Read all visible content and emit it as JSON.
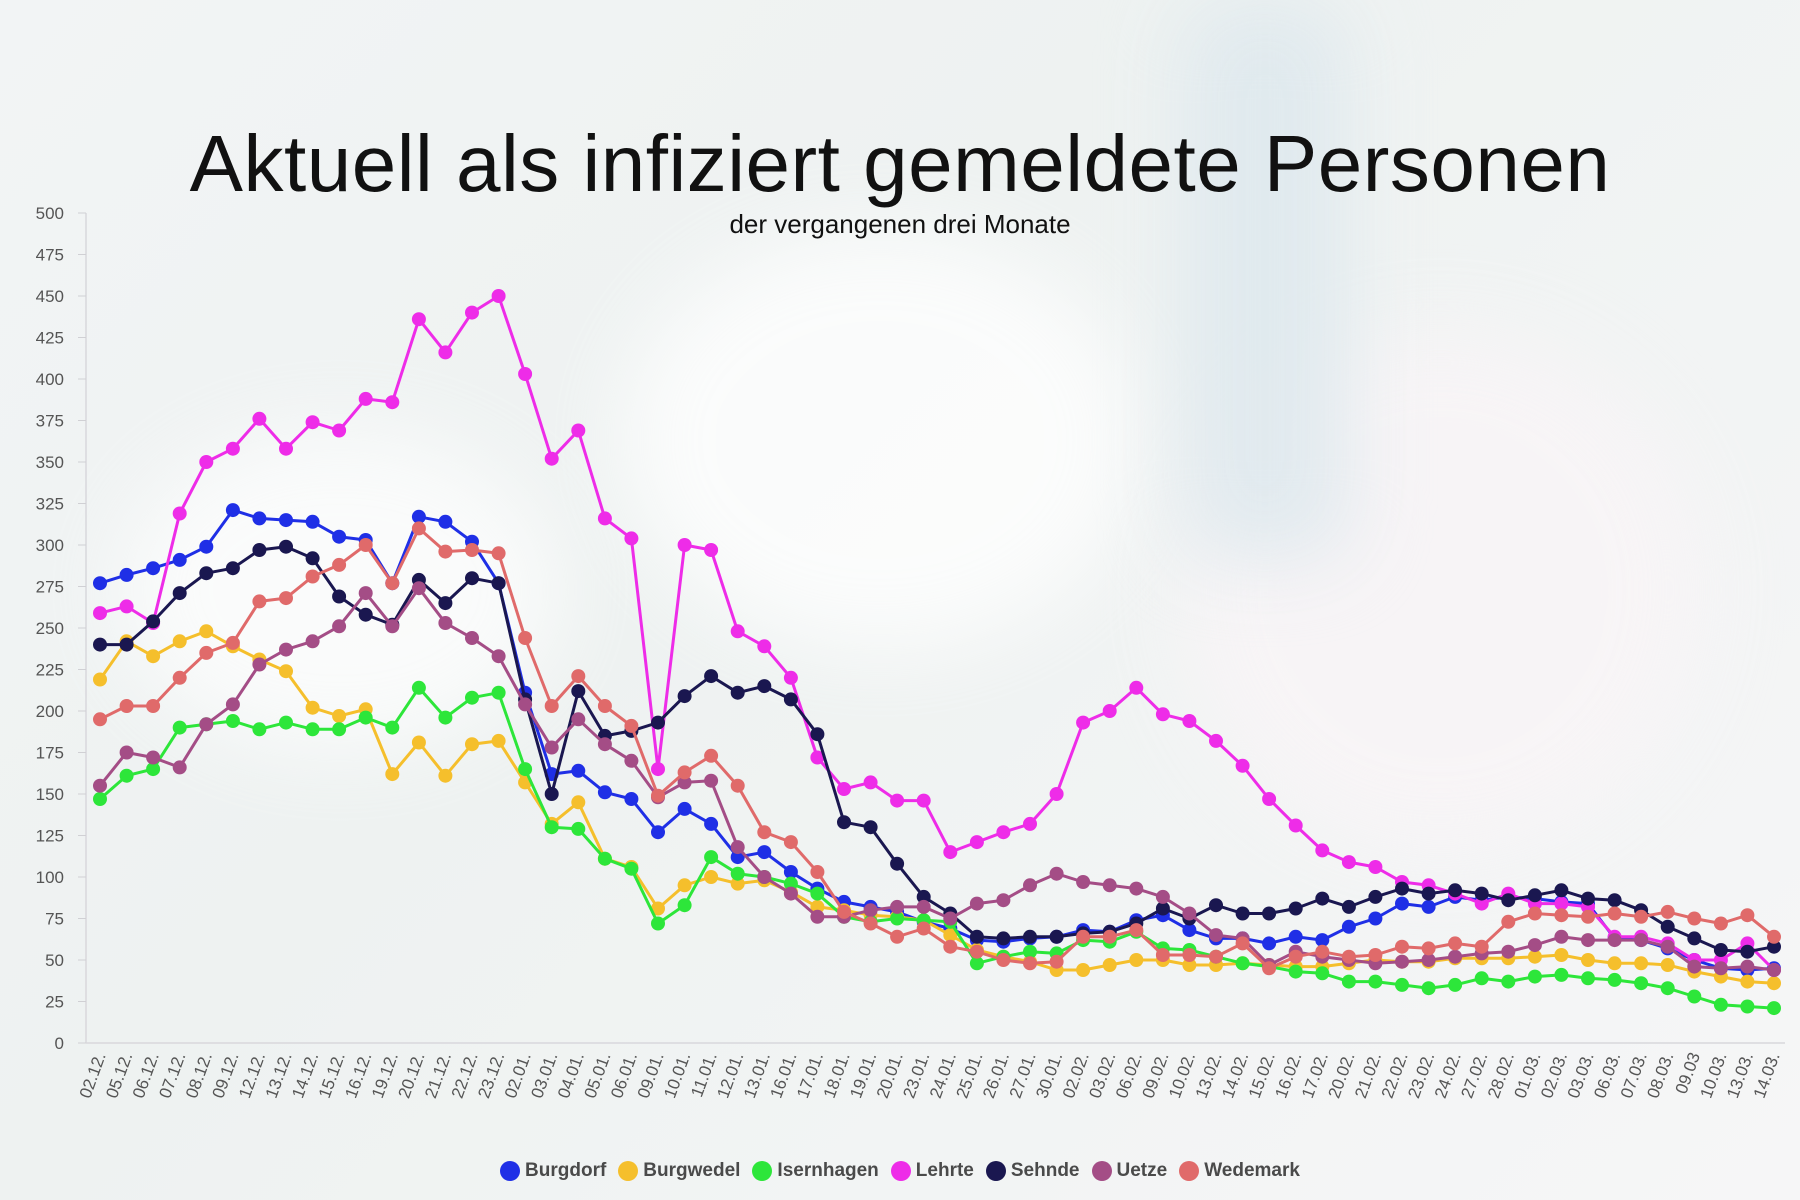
{
  "chart_data": {
    "type": "line",
    "title": "Aktuell als infiziert gemeldete Personen",
    "subtitle": "der vergangenen drei Monate",
    "xlabel": "",
    "ylabel": "",
    "ylim": [
      0,
      500
    ],
    "yticks": [
      "500",
      "475",
      "450",
      "425",
      "400",
      "375",
      "350",
      "325",
      "300",
      "275",
      "250",
      "225",
      "200",
      "175",
      "150",
      "125",
      "100",
      "75",
      "50",
      "25",
      "0"
    ],
    "categories": [
      "02.12.",
      "05.12.",
      "06.12.",
      "07.12.",
      "08.12.",
      "09.12.",
      "12.12.",
      "13.12.",
      "14.12.",
      "15.12.",
      "16.12.",
      "19.12.",
      "20.12.",
      "21.12.",
      "22.12.",
      "23.12.",
      "02.01.",
      "03.01.",
      "04.01.",
      "05.01.",
      "06.01.",
      "09.01.",
      "10.01.",
      "11.01.",
      "12.01.",
      "13.01.",
      "16.01.",
      "17.01.",
      "18.01.",
      "19.01.",
      "20.01.",
      "23.01.",
      "24.01.",
      "25.01.",
      "26.01.",
      "27.01.",
      "30.01.",
      "02.02.",
      "03.02.",
      "06.02.",
      "09.02.",
      "10.02.",
      "13.02.",
      "14.02.",
      "15.02.",
      "16.02.",
      "17.02.",
      "20.02.",
      "21.02.",
      "22.02.",
      "23.02.",
      "24.02.",
      "27.02.",
      "28.02.",
      "01.03.",
      "02.03.",
      "03.03.",
      "06.03.",
      "07.03.",
      "08.03.",
      "09.03",
      "10.03.",
      "13.03.",
      "14.03."
    ],
    "legend_position": "bottom",
    "grid": false,
    "series": [
      {
        "name": "Burgdorf",
        "color": "#1f2fe6",
        "values": [
          277,
          282,
          286,
          291,
          299,
          321,
          316,
          315,
          314,
          305,
          303,
          277,
          317,
          314,
          302,
          277,
          211,
          162,
          164,
          151,
          147,
          127,
          141,
          132,
          112,
          115,
          103,
          93,
          85,
          82,
          79,
          73,
          69,
          62,
          61,
          63,
          64,
          68,
          67,
          74,
          77,
          68,
          63,
          63,
          60,
          64,
          62,
          70,
          75,
          84,
          82,
          88,
          86,
          88,
          87,
          85,
          84,
          63,
          62,
          57,
          50,
          45,
          44,
          45
        ]
      },
      {
        "name": "Burgwedel",
        "color": "#f5bf2c",
        "values": [
          219,
          242,
          233,
          242,
          248,
          239,
          231,
          224,
          202,
          197,
          201,
          162,
          181,
          161,
          180,
          182,
          157,
          132,
          145,
          111,
          106,
          81,
          95,
          100,
          96,
          98,
          91,
          82,
          80,
          77,
          76,
          74,
          65,
          56,
          52,
          49,
          44,
          44,
          47,
          50,
          50,
          47,
          47,
          48,
          47,
          46,
          46,
          48,
          50,
          49,
          49,
          51,
          51,
          51,
          52,
          53,
          50,
          48,
          48,
          47,
          43,
          40,
          37,
          36
        ]
      },
      {
        "name": "Isernhagen",
        "color": "#2de63a",
        "values": [
          147,
          161,
          165,
          190,
          192,
          194,
          189,
          193,
          189,
          189,
          196,
          190,
          214,
          196,
          208,
          211,
          165,
          130,
          129,
          111,
          105,
          72,
          83,
          112,
          102,
          100,
          96,
          90,
          76,
          73,
          75,
          74,
          73,
          48,
          52,
          55,
          54,
          62,
          61,
          67,
          57,
          56,
          52,
          48,
          46,
          43,
          42,
          37,
          37,
          35,
          33,
          35,
          39,
          37,
          40,
          41,
          39,
          38,
          36,
          33,
          28,
          23,
          22,
          21
        ]
      },
      {
        "name": "Lehrte",
        "color": "#ee2ce8",
        "values": [
          259,
          263,
          253,
          319,
          350,
          358,
          376,
          358,
          374,
          369,
          388,
          386,
          436,
          416,
          440,
          450,
          403,
          352,
          369,
          316,
          304,
          165,
          300,
          297,
          248,
          239,
          220,
          172,
          153,
          157,
          146,
          146,
          115,
          121,
          127,
          132,
          150,
          193,
          200,
          214,
          198,
          194,
          182,
          167,
          147,
          131,
          116,
          109,
          106,
          97,
          95,
          90,
          84,
          90,
          84,
          84,
          82,
          64,
          64,
          60,
          50,
          50,
          60,
          44
        ]
      },
      {
        "name": "Sehnde",
        "color": "#1a1750",
        "values": [
          240,
          240,
          254,
          271,
          283,
          286,
          297,
          299,
          292,
          269,
          258,
          252,
          279,
          265,
          280,
          277,
          207,
          150,
          212,
          185,
          188,
          193,
          209,
          221,
          211,
          215,
          207,
          186,
          133,
          130,
          108,
          88,
          78,
          64,
          63,
          64,
          64,
          66,
          67,
          72,
          81,
          75,
          83,
          78,
          78,
          81,
          87,
          82,
          88,
          93,
          90,
          92,
          90,
          86,
          89,
          92,
          87,
          86,
          80,
          70,
          63,
          56,
          55,
          58
        ]
      },
      {
        "name": "Uetze",
        "color": "#a44d86",
        "values": [
          155,
          175,
          172,
          166,
          192,
          204,
          228,
          237,
          242,
          251,
          271,
          251,
          274,
          253,
          244,
          233,
          204,
          178,
          195,
          180,
          170,
          148,
          157,
          158,
          118,
          100,
          90,
          76,
          76,
          80,
          82,
          82,
          75,
          84,
          86,
          95,
          102,
          97,
          95,
          93,
          88,
          78,
          65,
          63,
          47,
          55,
          52,
          50,
          48,
          49,
          50,
          52,
          54,
          55,
          59,
          64,
          62,
          62,
          62,
          58,
          46,
          45,
          46,
          44
        ]
      },
      {
        "name": "Wedemark",
        "color": "#e06a6a",
        "values": [
          195,
          203,
          203,
          220,
          235,
          241,
          266,
          268,
          281,
          288,
          300,
          277,
          310,
          296,
          297,
          295,
          244,
          203,
          221,
          203,
          191,
          149,
          163,
          173,
          155,
          127,
          121,
          103,
          79,
          72,
          64,
          69,
          58,
          55,
          50,
          48,
          49,
          64,
          64,
          68,
          53,
          53,
          52,
          60,
          45,
          52,
          55,
          52,
          53,
          58,
          57,
          60,
          58,
          73,
          78,
          77,
          76,
          78,
          76,
          79,
          75,
          72,
          77,
          64
        ]
      }
    ]
  }
}
